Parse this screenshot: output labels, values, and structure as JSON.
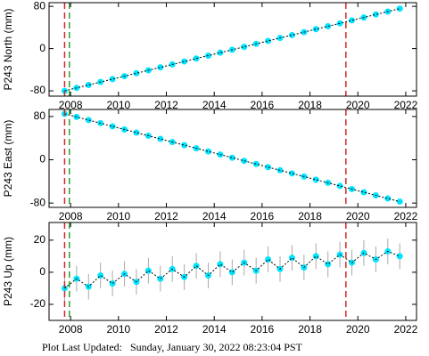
{
  "chart_data": [
    {
      "type": "scatter",
      "ylabel": "P243 North (mm)",
      "x": [
        2007.75,
        2008.25,
        2008.75,
        2009.25,
        2009.75,
        2010.25,
        2010.75,
        2011.25,
        2011.75,
        2012.25,
        2012.75,
        2013.25,
        2013.75,
        2014.25,
        2014.75,
        2015.25,
        2015.75,
        2016.25,
        2016.75,
        2017.25,
        2017.75,
        2018.25,
        2018.75,
        2019.25,
        2019.75,
        2020.25,
        2020.75,
        2021.25,
        2021.75
      ],
      "series": [
        {
          "color": "#00e5ff",
          "error_color": "#aaaaaa",
          "line_color": "#000000",
          "values": [
            -80,
            -74.4,
            -68.9,
            -63.3,
            -57.8,
            -52.2,
            -46.6,
            -41.1,
            -35.5,
            -30.0,
            -24.4,
            -18.8,
            -13.3,
            -7.7,
            -2.2,
            3.4,
            9.0,
            14.5,
            20.1,
            25.6,
            31.2,
            36.8,
            42.3,
            47.9,
            53.4,
            59.0,
            64.6,
            70.1,
            75.7
          ],
          "errors": [
            3,
            3,
            3,
            3,
            3,
            3,
            3,
            3,
            3,
            3,
            3,
            3,
            3,
            3,
            3,
            3,
            3,
            3,
            3,
            3,
            3,
            3,
            3,
            3,
            3,
            3,
            3,
            3,
            3
          ]
        }
      ],
      "events": [
        {
          "x": 2007.75,
          "color": "#d62728"
        },
        {
          "x": 2007.95,
          "color": "#2ca02c"
        },
        {
          "x": 2019.5,
          "color": "#d62728"
        }
      ],
      "xlim": [
        2007.1,
        2022.45
      ],
      "xticks": [
        2008,
        2010,
        2012,
        2014,
        2016,
        2018,
        2020,
        2022
      ],
      "ylim": [
        -90,
        87
      ],
      "yticks": [
        -80,
        0,
        80
      ]
    },
    {
      "type": "scatter",
      "ylabel": "P243 East (mm)",
      "x": [
        2007.75,
        2008.25,
        2008.75,
        2009.25,
        2009.75,
        2010.25,
        2010.75,
        2011.25,
        2011.75,
        2012.25,
        2012.75,
        2013.25,
        2013.75,
        2014.25,
        2014.75,
        2015.25,
        2015.75,
        2016.25,
        2016.75,
        2017.25,
        2017.75,
        2018.25,
        2018.75,
        2019.25,
        2019.75,
        2020.25,
        2020.75,
        2021.25,
        2021.75
      ],
      "series": [
        {
          "color": "#00e5ff",
          "error_color": "#aaaaaa",
          "line_color": "#000000",
          "values": [
            85,
            79.2,
            73.4,
            67.6,
            61.8,
            56,
            50.2,
            44.4,
            38.6,
            32.8,
            27,
            21.2,
            15.4,
            9.6,
            3.8,
            -2,
            -7.8,
            -13.6,
            -19.4,
            -25.2,
            -31,
            -36.8,
            -42.6,
            -48.4,
            -54.2,
            -60,
            -65.8,
            -71.6,
            -77.4
          ],
          "errors": [
            3,
            3,
            3,
            3,
            3,
            3,
            3,
            3,
            3,
            3,
            3,
            3,
            3,
            3,
            3,
            3,
            3,
            3,
            3,
            3,
            3,
            3,
            3,
            3,
            3,
            3,
            3,
            3,
            3
          ]
        }
      ],
      "events": [
        {
          "x": 2007.75,
          "color": "#d62728"
        },
        {
          "x": 2007.95,
          "color": "#2ca02c"
        },
        {
          "x": 2019.5,
          "color": "#d62728"
        }
      ],
      "xlim": [
        2007.1,
        2022.45
      ],
      "xticks": [
        2008,
        2010,
        2012,
        2014,
        2016,
        2018,
        2020,
        2022
      ],
      "ylim": [
        -88,
        93
      ],
      "yticks": [
        -80,
        0,
        80
      ]
    },
    {
      "type": "scatter",
      "ylabel": "P243 Up (mm)",
      "x": [
        2007.75,
        2008.25,
        2008.75,
        2009.25,
        2009.75,
        2010.25,
        2010.75,
        2011.25,
        2011.75,
        2012.25,
        2012.75,
        2013.25,
        2013.75,
        2014.25,
        2014.75,
        2015.25,
        2015.75,
        2016.25,
        2016.75,
        2017.25,
        2017.75,
        2018.25,
        2018.75,
        2019.25,
        2019.75,
        2020.25,
        2020.75,
        2021.25,
        2021.75
      ],
      "series": [
        {
          "color": "#00e5ff",
          "error_color": "#aaaaaa",
          "line_color": "#000000",
          "values": [
            -10,
            -4,
            -9,
            -2,
            -7,
            -1,
            -6,
            1,
            -4,
            2,
            -3,
            4,
            -2,
            5,
            0,
            6,
            1,
            8,
            2,
            9,
            3,
            10,
            5,
            11,
            6,
            12,
            8,
            13,
            10
          ],
          "errors": [
            8,
            8,
            8,
            8,
            8,
            8,
            8,
            8,
            8,
            8,
            8,
            8,
            8,
            8,
            8,
            8,
            8,
            8,
            8,
            8,
            8,
            8,
            8,
            8,
            8,
            8,
            8,
            8,
            8
          ]
        }
      ],
      "events": [
        {
          "x": 2007.75,
          "color": "#d62728"
        },
        {
          "x": 2007.95,
          "color": "#2ca02c"
        },
        {
          "x": 2019.5,
          "color": "#d62728"
        }
      ],
      "xlim": [
        2007.1,
        2022.45
      ],
      "xticks": [
        2008,
        2010,
        2012,
        2014,
        2016,
        2018,
        2020,
        2022
      ],
      "ylim": [
        -30,
        31
      ],
      "yticks": [
        -20,
        0,
        20
      ]
    }
  ],
  "footer": "Plot Last Updated:   Sunday, January 30, 2022 08:23:04 PST"
}
